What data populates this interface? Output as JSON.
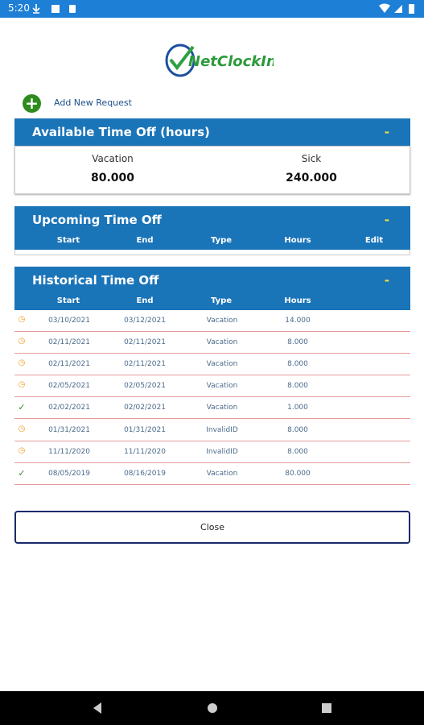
{
  "status_bar": {
    "time": "5:20"
  },
  "logo": {
    "text": "NetClockIn"
  },
  "add_request": {
    "icon": "+",
    "label": "Add New Request"
  },
  "available": {
    "title": "Available Time Off (hours)",
    "toggle": "-",
    "columns": [
      {
        "label": "Vacation",
        "value": "80.000"
      },
      {
        "label": "Sick",
        "value": "240.000"
      }
    ]
  },
  "upcoming": {
    "title": "Upcoming Time Off",
    "toggle": "-",
    "headers": [
      "Start",
      "End",
      "Type",
      "Hours",
      "Edit"
    ]
  },
  "historical": {
    "title": "Historical Time Off",
    "toggle": "-",
    "headers": [
      "Start",
      "End",
      "Type",
      "Hours"
    ],
    "rows": [
      [
        "◷",
        "03/10/2021",
        "03/12/2021",
        "Vacation",
        "14.000"
      ],
      [
        "◷",
        "02/11/2021",
        "02/11/2021",
        "Vacation",
        "8.000"
      ],
      [
        "◷",
        "02/11/2021",
        "02/11/2021",
        "Vacation",
        "8.000"
      ],
      [
        "◷",
        "02/05/2021",
        "02/05/2021",
        "Vacation",
        "8.000"
      ],
      [
        "✓",
        "02/02/2021",
        "02/02/2021",
        "Vacation",
        "1.000"
      ],
      [
        "◷",
        "01/31/2021",
        "01/31/2021",
        "InvalidID",
        "8.000"
      ],
      [
        "◷",
        "11/11/2020",
        "11/11/2020",
        "InvalidID",
        "8.000"
      ],
      [
        "✓",
        "08/05/2019",
        "08/16/2019",
        "Vacation",
        "80.000"
      ]
    ]
  },
  "close_button": {
    "label": "Close"
  }
}
